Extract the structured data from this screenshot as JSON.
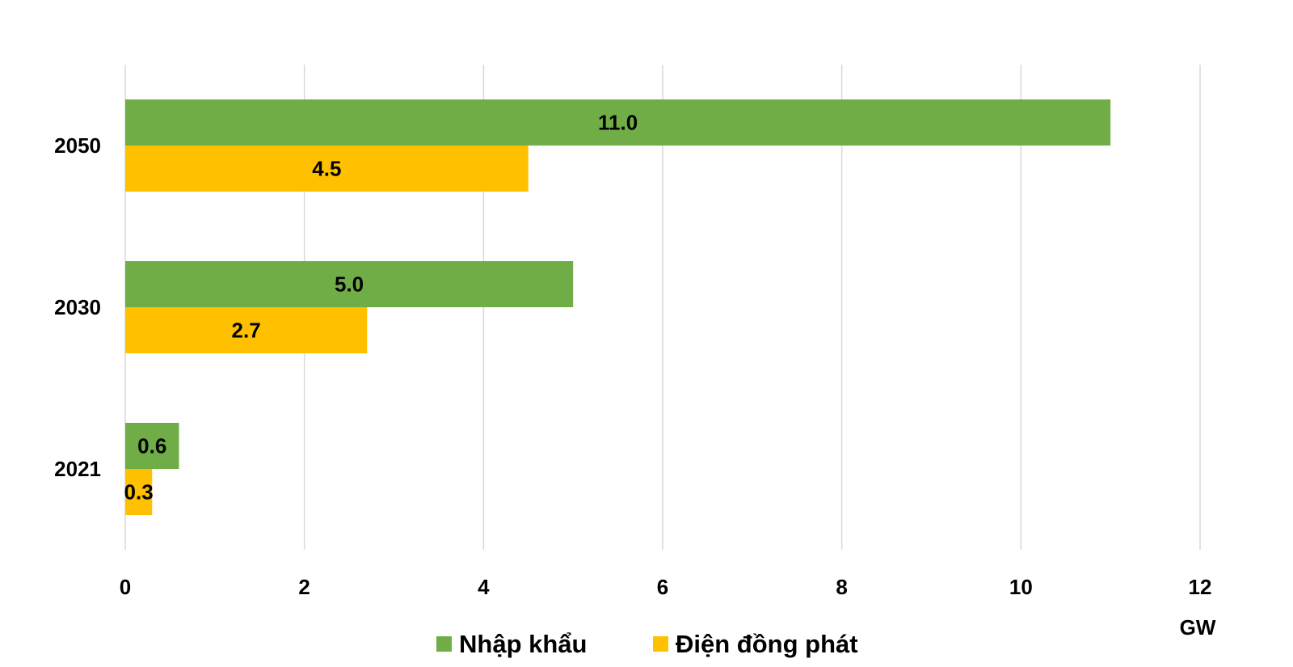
{
  "chart_data": {
    "type": "bar",
    "orientation": "horizontal",
    "categories": [
      "2050",
      "2030",
      "2021"
    ],
    "series": [
      {
        "name": "Nhập khẩu",
        "values": [
          11.0,
          5.0,
          0.6
        ],
        "labels": [
          "11.0",
          "5.0",
          "0.6"
        ],
        "color": "#70ad47"
      },
      {
        "name": "Điện đồng phát",
        "values": [
          4.5,
          2.7,
          0.3
        ],
        "labels": [
          "4.5",
          "2.7",
          "0.3"
        ],
        "color": "#ffc000"
      }
    ],
    "xlim": [
      0,
      12
    ],
    "xticks": [
      0,
      2,
      4,
      6,
      8,
      10,
      12
    ],
    "xtick_labels": [
      "0",
      "2",
      "4",
      "6",
      "8",
      "10",
      "12"
    ],
    "xunit": "GW",
    "grid": true,
    "legend_position": "bottom"
  }
}
